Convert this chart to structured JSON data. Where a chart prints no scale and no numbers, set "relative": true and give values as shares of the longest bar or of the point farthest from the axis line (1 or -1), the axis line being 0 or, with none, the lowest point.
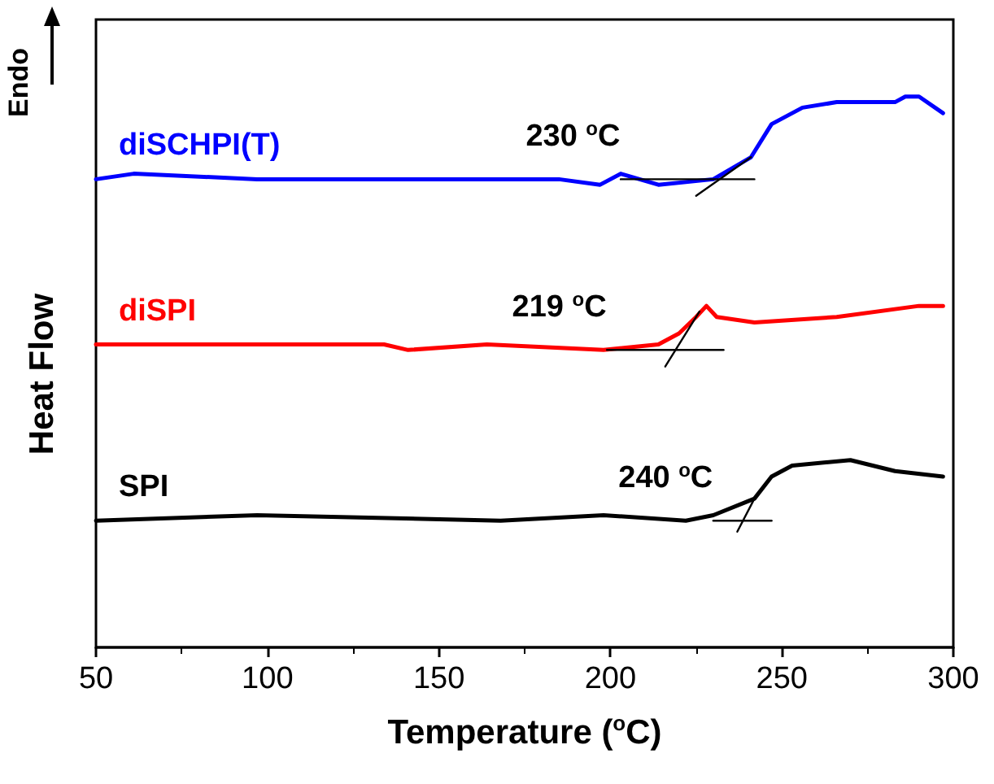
{
  "chart_data": {
    "type": "line",
    "relative": true,
    "xlabel": "Temperature ($^{o}$C)",
    "ylabel": "Heat Flow",
    "xlim": [
      50,
      300
    ],
    "xticks": [
      50,
      100,
      150,
      200,
      250,
      300
    ],
    "line_style": "solid",
    "annotations": [
      "Endo",
      "230 $^{o}$C",
      "219 $^{o}$C",
      "240 $^{o}$C"
    ],
    "series": [
      {
        "name": "diSCHPI(T)",
        "color": "#0000ff",
        "x": [
          50,
          61,
          97,
          147,
          185,
          197,
          203,
          214,
          230,
          241,
          247,
          256,
          266,
          283,
          286,
          290,
          297
        ],
        "values": [
          0.85,
          0.86,
          0.85,
          0.85,
          0.85,
          0.84,
          0.86,
          0.84,
          0.85,
          0.89,
          0.95,
          0.98,
          0.99,
          0.99,
          1,
          1,
          0.97
        ]
      },
      {
        "name": "diSPI",
        "color": "#ff0000",
        "x": [
          50,
          97,
          134,
          141,
          164,
          198,
          214,
          220,
          225,
          228,
          231,
          242,
          266,
          290,
          297
        ],
        "values": [
          0.55,
          0.55,
          0.55,
          0.54,
          0.55,
          0.54,
          0.55,
          0.57,
          0.6,
          0.62,
          0.6,
          0.59,
          0.6,
          0.62,
          0.62
        ]
      },
      {
        "name": "SPI",
        "color": "#000000",
        "x": [
          50,
          97,
          168,
          198,
          222,
          230,
          242,
          247,
          253,
          270,
          283,
          297
        ],
        "values": [
          0.23,
          0.24,
          0.23,
          0.24,
          0.23,
          0.24,
          0.27,
          0.31,
          0.33,
          0.34,
          0.32,
          0.31
        ]
      },
      {
        "color": "#000000",
        "x": [
          203,
          242
        ],
        "values": [
          0.85,
          0.85
        ]
      },
      {
        "color": "#000000",
        "x": [
          225,
          241
        ],
        "values": [
          0.82,
          0.89
        ]
      },
      {
        "color": "#000000",
        "x": [
          199,
          233
        ],
        "values": [
          0.54,
          0.54
        ]
      },
      {
        "color": "#000000",
        "x": [
          216,
          226
        ],
        "values": [
          0.51,
          0.61
        ]
      },
      {
        "color": "#000000",
        "x": [
          230,
          247
        ],
        "values": [
          0.23,
          0.23
        ]
      },
      {
        "color": "#000000",
        "x": [
          237,
          242
        ],
        "values": [
          0.21,
          0.27
        ]
      }
    ]
  }
}
